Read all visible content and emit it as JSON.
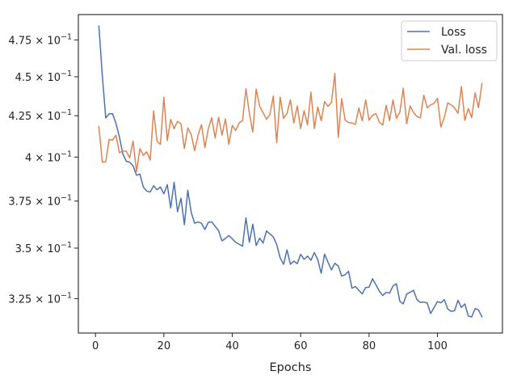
{
  "chart_data": {
    "type": "line",
    "xlabel": "Epochs",
    "ylabel": "",
    "yscale": "log",
    "xlim": [
      -5,
      119
    ],
    "ylim": [
      0.309,
      0.493
    ],
    "grid": false,
    "legend_position": "top-right",
    "x_ticks": [
      0,
      20,
      40,
      60,
      80,
      100
    ],
    "x_tick_labels": [
      "0",
      "20",
      "40",
      "60",
      "80",
      "100"
    ],
    "y_ticks": [
      0.325,
      0.35,
      0.375,
      0.4,
      0.425,
      0.45,
      0.475
    ],
    "y_tick_labels": [
      {
        "m": "3.25",
        "e": "−1"
      },
      {
        "m": "3.5",
        "e": "−1"
      },
      {
        "m": "3.75",
        "e": "−1"
      },
      {
        "m": "4",
        "e": "−1"
      },
      {
        "m": "4.25",
        "e": "−1"
      },
      {
        "m": "4.5",
        "e": "−1"
      },
      {
        "m": "4.75",
        "e": "−1"
      }
    ],
    "series": [
      {
        "name": "Loss",
        "color": "#4c72b0",
        "values": [
          0.4848,
          0.451,
          0.4237,
          0.4262,
          0.4262,
          0.4202,
          0.412,
          0.4019,
          0.3976,
          0.397,
          0.3949,
          0.3895,
          0.3901,
          0.3828,
          0.3805,
          0.38,
          0.3835,
          0.3813,
          0.3828,
          0.379,
          0.3841,
          0.3712,
          0.3855,
          0.3692,
          0.3766,
          0.3622,
          0.381,
          0.3688,
          0.363,
          0.3637,
          0.363,
          0.3597,
          0.3635,
          0.3637,
          0.3614,
          0.359,
          0.3537,
          0.355,
          0.3565,
          0.3548,
          0.353,
          0.352,
          0.351,
          0.3659,
          0.353,
          0.3625,
          0.3513,
          0.3551,
          0.3526,
          0.3589,
          0.3574,
          0.3558,
          0.3518,
          0.345,
          0.3418,
          0.3491,
          0.3418,
          0.3434,
          0.3421,
          0.3468,
          0.3443,
          0.3459,
          0.3438,
          0.3477,
          0.3441,
          0.3373,
          0.3469,
          0.3428,
          0.339,
          0.3423,
          0.3409,
          0.3359,
          0.3366,
          0.3383,
          0.33,
          0.3308,
          0.329,
          0.3273,
          0.3303,
          0.3305,
          0.3346,
          0.3317,
          0.3286,
          0.3265,
          0.328,
          0.3276,
          0.3311,
          0.3322,
          0.3237,
          0.3225,
          0.3272,
          0.328,
          0.329,
          0.3245,
          0.3232,
          0.3234,
          0.3229,
          0.318,
          0.3208,
          0.3236,
          0.323,
          0.3245,
          0.3201,
          0.319,
          0.3193,
          0.3242,
          0.3208,
          0.3225,
          0.3168,
          0.3164,
          0.3203,
          0.3196,
          0.3164
        ]
      },
      {
        "name": "Val. loss",
        "color": "#dd8452",
        "values": [
          0.4183,
          0.3971,
          0.3972,
          0.4105,
          0.41,
          0.413,
          0.4026,
          0.4035,
          0.4035,
          0.3995,
          0.4095,
          0.3915,
          0.405,
          0.401,
          0.4031,
          0.3983,
          0.428,
          0.4095,
          0.4075,
          0.4367,
          0.4098,
          0.4227,
          0.417,
          0.4215,
          0.42,
          0.405,
          0.4175,
          0.4135,
          0.4038,
          0.413,
          0.4195,
          0.4055,
          0.4171,
          0.4237,
          0.4113,
          0.424,
          0.4131,
          0.423,
          0.4075,
          0.419,
          0.4159,
          0.4205,
          0.422,
          0.4422,
          0.4265,
          0.415,
          0.442,
          0.4309,
          0.427,
          0.4228,
          0.4258,
          0.4375,
          0.4085,
          0.4368,
          0.4233,
          0.4265,
          0.435,
          0.4205,
          0.4312,
          0.4171,
          0.4282,
          0.4193,
          0.44,
          0.4171,
          0.4305,
          0.4219,
          0.434,
          0.4309,
          0.4335,
          0.4522,
          0.4117,
          0.4358,
          0.4223,
          0.4208,
          0.4205,
          0.4196,
          0.4299,
          0.4218,
          0.435,
          0.4222,
          0.4253,
          0.4263,
          0.421,
          0.4192,
          0.4315,
          0.422,
          0.435,
          0.4234,
          0.4272,
          0.4425,
          0.42,
          0.4311,
          0.427,
          0.4245,
          0.4237,
          0.438,
          0.43,
          0.4318,
          0.4328,
          0.436,
          0.418,
          0.424,
          0.4331,
          0.4318,
          0.43,
          0.4265,
          0.4435,
          0.4221,
          0.4295,
          0.4238,
          0.4395,
          0.43,
          0.4455
        ]
      }
    ]
  }
}
